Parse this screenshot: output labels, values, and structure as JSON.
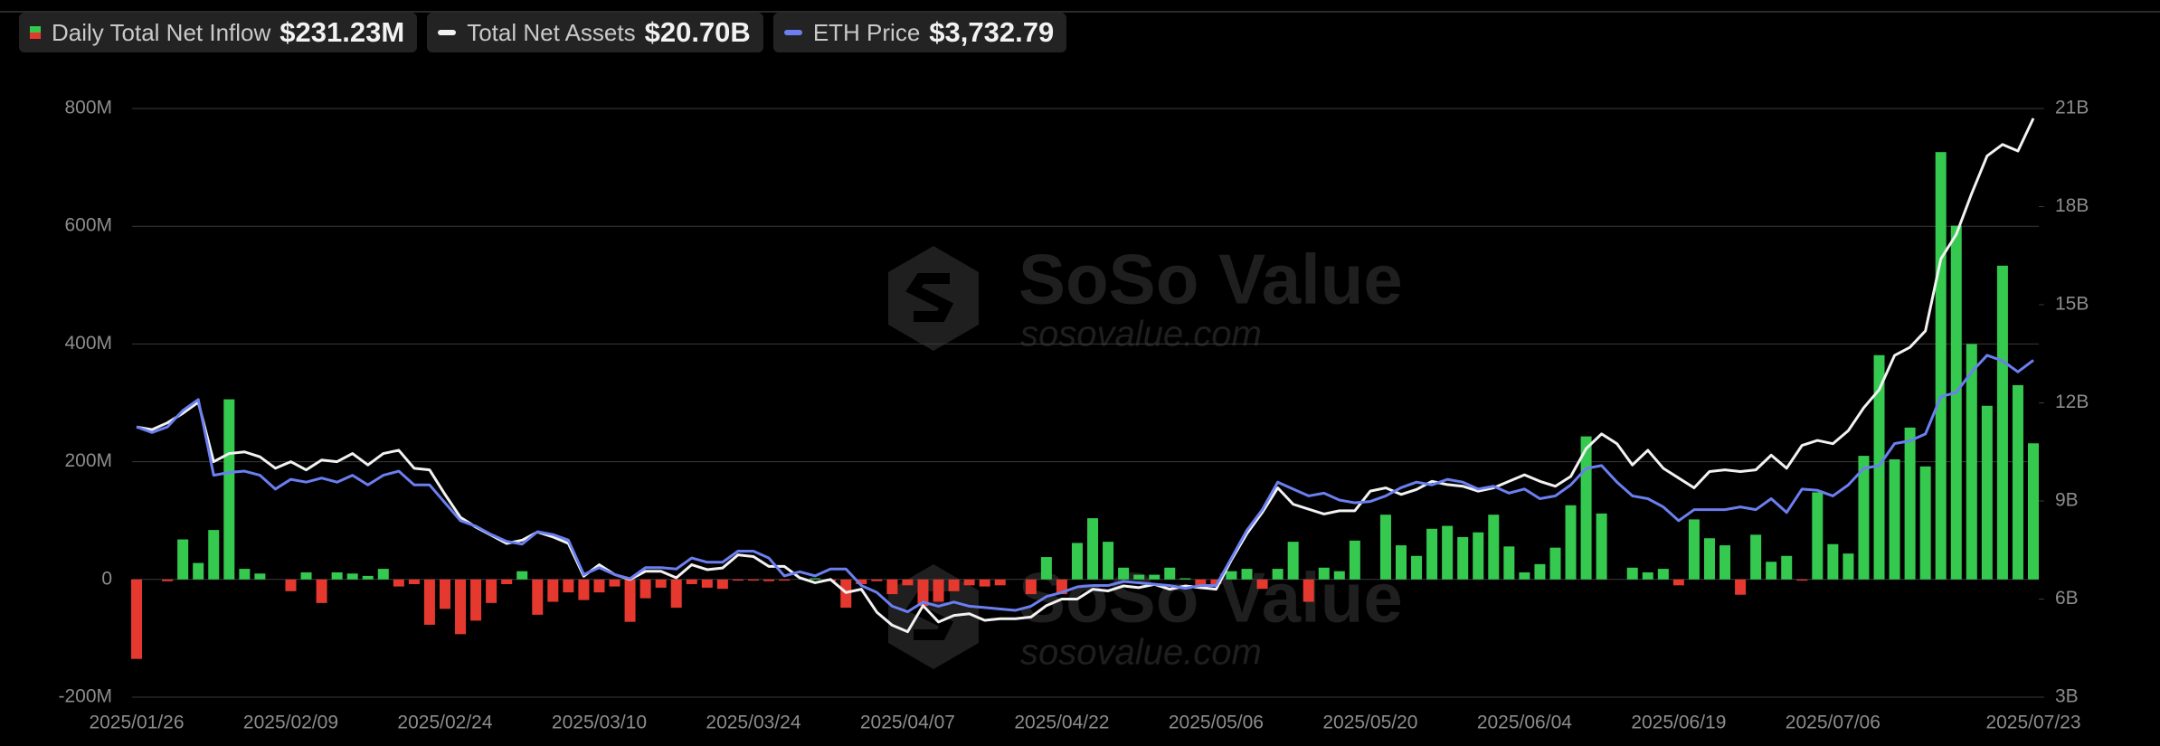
{
  "chart_data": {
    "type": "bar-line",
    "categories": [
      "2025/01/26",
      null,
      null,
      null,
      null,
      null,
      null,
      null,
      null,
      null,
      "2025/02/09",
      null,
      null,
      null,
      null,
      null,
      null,
      null,
      null,
      null,
      "2025/02/24",
      null,
      null,
      null,
      null,
      null,
      null,
      null,
      null,
      null,
      "2025/03/10",
      null,
      null,
      null,
      null,
      null,
      null,
      null,
      null,
      null,
      "2025/03/24",
      null,
      null,
      null,
      null,
      null,
      null,
      null,
      null,
      null,
      "2025/04/07",
      null,
      null,
      null,
      null,
      null,
      null,
      null,
      null,
      null,
      "2025/04/22",
      null,
      null,
      null,
      null,
      null,
      null,
      null,
      null,
      null,
      "2025/05/06",
      null,
      null,
      null,
      null,
      null,
      null,
      null,
      null,
      null,
      "2025/05/20",
      null,
      null,
      null,
      null,
      null,
      null,
      null,
      null,
      null,
      "2025/06/04",
      null,
      null,
      null,
      null,
      null,
      null,
      null,
      null,
      null,
      "2025/06/19",
      null,
      null,
      null,
      null,
      null,
      null,
      null,
      null,
      null,
      "2025/07/06",
      null,
      null,
      null,
      null,
      null,
      null,
      null,
      null,
      null,
      null,
      null,
      null,
      "2025/07/23"
    ],
    "series": [
      {
        "name": "Daily Total Net Inflow",
        "type": "bar",
        "color": "#35c94f",
        "negative_color": "#e5392f",
        "last_value_label": "$231.23M",
        "values": [
          -135,
          0,
          -3,
          68,
          28,
          84,
          306,
          18,
          10,
          0,
          -20,
          12,
          -40,
          12,
          10,
          6,
          18,
          -12,
          -8,
          -77,
          -50,
          -93,
          -70,
          -40,
          -8,
          14,
          -60,
          -38,
          -22,
          -35,
          -22,
          -12,
          -72,
          -32,
          -14,
          -48,
          -8,
          -14,
          -16,
          -2,
          -2,
          -3,
          -2,
          0,
          2,
          -3,
          -48,
          -8,
          -3,
          -25,
          -10,
          -45,
          -38,
          -20,
          -10,
          -12,
          -10,
          0,
          -25,
          38,
          -25,
          62,
          104,
          64,
          20,
          8,
          8,
          20,
          2,
          -10,
          -8,
          14,
          18,
          -16,
          18,
          64,
          -38,
          20,
          14,
          66,
          0,
          110,
          58,
          40,
          86,
          91,
          72,
          80,
          110,
          56,
          12,
          26,
          54,
          126,
          243,
          112,
          0,
          20,
          12,
          18,
          -10,
          102,
          70,
          58,
          -26,
          76,
          30,
          40,
          -2,
          148,
          60,
          44,
          210,
          381,
          204,
          258,
          192,
          726,
          601,
          400,
          295,
          533,
          330,
          231.23
        ]
      },
      {
        "name": "Total Net Assets",
        "type": "line",
        "axis": "y2",
        "color": "#f2f2f2",
        "last_value_label": "$20.70B",
        "values": [
          11.26,
          11.18,
          11.39,
          11.68,
          12.02,
          10.2,
          10.45,
          10.5,
          10.35,
          10.0,
          10.2,
          9.95,
          10.25,
          10.2,
          10.45,
          10.1,
          10.45,
          10.55,
          10.0,
          9.95,
          9.2,
          8.5,
          8.2,
          7.95,
          7.7,
          7.8,
          8.05,
          7.9,
          7.7,
          6.7,
          7.05,
          6.75,
          6.6,
          6.85,
          6.85,
          6.65,
          7.05,
          6.9,
          6.95,
          7.35,
          7.3,
          7.0,
          7.0,
          6.65,
          6.5,
          6.6,
          6.2,
          6.3,
          5.6,
          5.2,
          5.0,
          5.8,
          5.3,
          5.5,
          5.55,
          5.35,
          5.4,
          5.4,
          5.45,
          5.8,
          6.0,
          6.0,
          6.3,
          6.25,
          6.4,
          6.35,
          6.45,
          6.3,
          6.4,
          6.35,
          6.3,
          7.2,
          8.0,
          8.65,
          9.4,
          8.9,
          8.75,
          8.6,
          8.7,
          8.7,
          9.3,
          9.4,
          9.2,
          9.35,
          9.6,
          9.5,
          9.45,
          9.3,
          9.4,
          9.6,
          9.8,
          9.6,
          9.45,
          9.75,
          10.6,
          11.05,
          10.75,
          10.1,
          10.55,
          10.0,
          9.7,
          9.4,
          9.9,
          9.95,
          9.9,
          9.95,
          10.4,
          10.0,
          10.7,
          10.85,
          10.75,
          11.15,
          11.85,
          12.4,
          13.45,
          13.7,
          14.2,
          16.4,
          17.15,
          18.4,
          19.55,
          19.9,
          19.7,
          20.7
        ]
      },
      {
        "name": "ETH Price",
        "type": "line",
        "axis": "y3",
        "color": "#6b7ff0",
        "last_value_label": "$3,732.79",
        "values": [
          3133,
          3083,
          3133,
          3281,
          3380,
          2698,
          2723,
          2735,
          2698,
          2574,
          2661,
          2636,
          2673,
          2636,
          2698,
          2611,
          2698,
          2735,
          2611,
          2611,
          2450,
          2289,
          2239,
          2164,
          2102,
          2078,
          2190,
          2164,
          2114,
          1804,
          1866,
          1804,
          1767,
          1866,
          1866,
          1854,
          1953,
          1915,
          1915,
          2015,
          2015,
          1953,
          1792,
          1829,
          1792,
          1854,
          1854,
          1705,
          1643,
          1519,
          1469,
          1556,
          1519,
          1556,
          1519,
          1507,
          1494,
          1482,
          1519,
          1606,
          1643,
          1693,
          1705,
          1705,
          1742,
          1730,
          1717,
          1705,
          1680,
          1705,
          1705,
          1953,
          2202,
          2388,
          2636,
          2574,
          2512,
          2537,
          2475,
          2450,
          2462,
          2512,
          2586,
          2636,
          2611,
          2661,
          2636,
          2574,
          2599,
          2537,
          2574,
          2487,
          2512,
          2611,
          2760,
          2785,
          2636,
          2512,
          2487,
          2413,
          2289,
          2388,
          2388,
          2388,
          2413,
          2388,
          2487,
          2363,
          2574,
          2562,
          2512,
          2611,
          2760,
          2785,
          2983,
          3008,
          3070,
          3405,
          3443,
          3629,
          3778,
          3728,
          3629,
          3732.79
        ]
      }
    ],
    "ylim": [
      -200,
      800
    ],
    "yticks": [
      {
        "value": -200,
        "label": "-200M"
      },
      0,
      {
        "value": 200,
        "label": "200M"
      },
      {
        "value": 400,
        "label": "400M"
      },
      {
        "value": 600,
        "label": "600M"
      },
      {
        "value": 800,
        "label": "800M"
      }
    ],
    "y2lim": [
      3,
      21
    ],
    "y2ticks": [
      {
        "value": 3,
        "label": "3B"
      },
      {
        "value": 6,
        "label": "6B"
      },
      {
        "value": 9,
        "label": "9B"
      },
      {
        "value": 12,
        "label": "12B"
      },
      {
        "value": 15,
        "label": "15B"
      },
      {
        "value": 18,
        "label": "18B"
      },
      {
        "value": 21,
        "label": "21B"
      }
    ],
    "y3lim": [
      700,
      6000
    ],
    "grid": true,
    "watermark": {
      "brand": "SoSo Value",
      "url": "sosovalue.com"
    }
  }
}
